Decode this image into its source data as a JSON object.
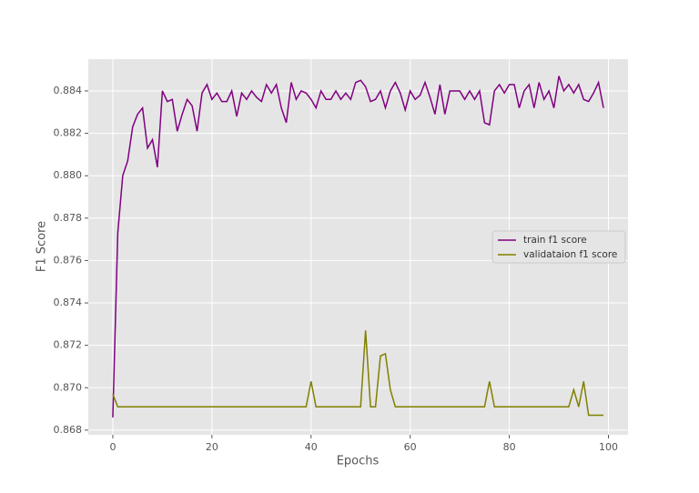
{
  "chart_data": {
    "type": "line",
    "xlabel": "Epochs",
    "ylabel": "F1 Score",
    "x": [
      0,
      1,
      2,
      3,
      4,
      5,
      6,
      7,
      8,
      9,
      10,
      11,
      12,
      13,
      14,
      15,
      16,
      17,
      18,
      19,
      20,
      21,
      22,
      23,
      24,
      25,
      26,
      27,
      28,
      29,
      30,
      31,
      32,
      33,
      34,
      35,
      36,
      37,
      38,
      39,
      40,
      41,
      42,
      43,
      44,
      45,
      46,
      47,
      48,
      49,
      50,
      51,
      52,
      53,
      54,
      55,
      56,
      57,
      58,
      59,
      60,
      61,
      62,
      63,
      64,
      65,
      66,
      67,
      68,
      69,
      70,
      71,
      72,
      73,
      74,
      75,
      76,
      77,
      78,
      79,
      80,
      81,
      82,
      83,
      84,
      85,
      86,
      87,
      88,
      89,
      90,
      91,
      92,
      93,
      94,
      95,
      96,
      97,
      98,
      99
    ],
    "series": [
      {
        "name": "train f1 score",
        "color": "#800080",
        "values": [
          0.8686,
          0.8773,
          0.88,
          0.8807,
          0.8823,
          0.8829,
          0.8832,
          0.8813,
          0.8817,
          0.8804,
          0.884,
          0.8835,
          0.8836,
          0.8821,
          0.8829,
          0.8836,
          0.8833,
          0.8821,
          0.8839,
          0.8843,
          0.8836,
          0.8839,
          0.8835,
          0.8835,
          0.884,
          0.8828,
          0.8839,
          0.8836,
          0.884,
          0.8837,
          0.8835,
          0.8843,
          0.8839,
          0.8843,
          0.8832,
          0.8825,
          0.8844,
          0.8836,
          0.884,
          0.8839,
          0.8836,
          0.8832,
          0.884,
          0.8836,
          0.8836,
          0.884,
          0.8836,
          0.8839,
          0.8836,
          0.8844,
          0.8845,
          0.8842,
          0.8835,
          0.8836,
          0.884,
          0.8832,
          0.884,
          0.8844,
          0.8839,
          0.8831,
          0.884,
          0.8836,
          0.8838,
          0.8844,
          0.8837,
          0.8829,
          0.8843,
          0.8829,
          0.884,
          0.884,
          0.884,
          0.8836,
          0.884,
          0.8836,
          0.884,
          0.8825,
          0.8824,
          0.884,
          0.8843,
          0.8839,
          0.8843,
          0.8843,
          0.8832,
          0.884,
          0.8843,
          0.8832,
          0.8844,
          0.8836,
          0.884,
          0.8832,
          0.8847,
          0.884,
          0.8843,
          0.8839,
          0.8843,
          0.8836,
          0.8835,
          0.8839,
          0.8844,
          0.8832
        ]
      },
      {
        "name": "validataion f1 score",
        "color": "#808000",
        "values": [
          0.8697,
          0.8691,
          0.8691,
          0.8691,
          0.8691,
          0.8691,
          0.8691,
          0.8691,
          0.8691,
          0.8691,
          0.8691,
          0.8691,
          0.8691,
          0.8691,
          0.8691,
          0.8691,
          0.8691,
          0.8691,
          0.8691,
          0.8691,
          0.8691,
          0.8691,
          0.8691,
          0.8691,
          0.8691,
          0.8691,
          0.8691,
          0.8691,
          0.8691,
          0.8691,
          0.8691,
          0.8691,
          0.8691,
          0.8691,
          0.8691,
          0.8691,
          0.8691,
          0.8691,
          0.8691,
          0.8691,
          0.8703,
          0.8691,
          0.8691,
          0.8691,
          0.8691,
          0.8691,
          0.8691,
          0.8691,
          0.8691,
          0.8691,
          0.8691,
          0.8727,
          0.8691,
          0.8691,
          0.8715,
          0.8716,
          0.8699,
          0.8691,
          0.8691,
          0.8691,
          0.8691,
          0.8691,
          0.8691,
          0.8691,
          0.8691,
          0.8691,
          0.8691,
          0.8691,
          0.8691,
          0.8691,
          0.8691,
          0.8691,
          0.8691,
          0.8691,
          0.8691,
          0.8691,
          0.8703,
          0.8691,
          0.8691,
          0.8691,
          0.8691,
          0.8691,
          0.8691,
          0.8691,
          0.8691,
          0.8691,
          0.8691,
          0.8691,
          0.8691,
          0.8691,
          0.8691,
          0.8691,
          0.8691,
          0.8699,
          0.8691,
          0.8703,
          0.8687,
          0.8687,
          0.8687,
          0.8687
        ]
      }
    ],
    "xlim": [
      -4.95,
      103.95
    ],
    "xticks": [
      0,
      20,
      40,
      60,
      80,
      100
    ],
    "ylim": [
      0.86778,
      0.8855
    ],
    "yticks": [
      0.868,
      {
        "value": 0.87,
        "label": "0.870"
      },
      0.872,
      0.874,
      0.876,
      0.878,
      {
        "value": 0.88,
        "label": "0.880"
      },
      0.882,
      0.884
    ],
    "grid": true,
    "legend": "center right"
  }
}
